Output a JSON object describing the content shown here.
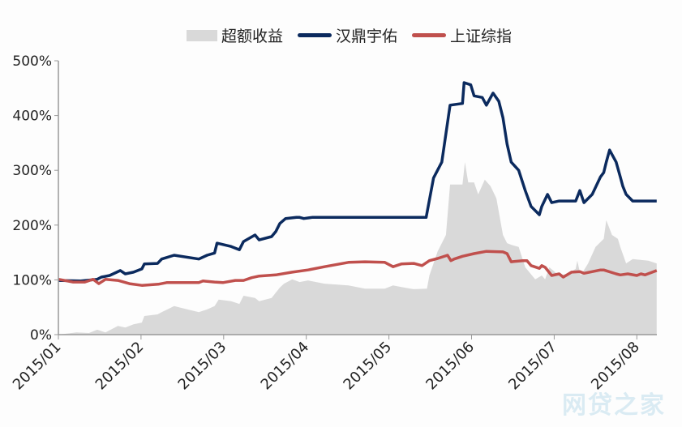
{
  "chart_data": {
    "type": "line",
    "title": "",
    "xlabel": "",
    "ylabel": "",
    "x_unit": "months since 2015/01",
    "x_tick_labels": [
      "2015/01",
      "2015/02",
      "2015/03",
      "2015/04",
      "2015/05",
      "2015/06",
      "2015/07",
      "2015/08"
    ],
    "xlim": [
      0,
      7.24
    ],
    "y_tick_labels": [
      "0%",
      "100%",
      "200%",
      "300%",
      "400%",
      "500%"
    ],
    "ylim": [
      0,
      500
    ],
    "grid": false,
    "legend_position": "top-center",
    "legend": [
      "超额收益",
      "汉鼎宇佑",
      "上证综指"
    ],
    "series": [
      {
        "name": "超额收益",
        "kind": "area",
        "color": "#d9d9d9",
        "x": [
          0,
          0.22,
          0.37,
          0.47,
          0.57,
          0.72,
          0.81,
          0.91,
          1.01,
          1.04,
          1.2,
          1.25,
          1.4,
          1.7,
          1.8,
          1.89,
          1.94,
          2.09,
          2.19,
          2.24,
          2.38,
          2.43,
          2.58,
          2.68,
          2.73,
          2.83,
          2.92,
          3.02,
          3.22,
          3.51,
          3.71,
          3.95,
          4.05,
          4.15,
          4.3,
          4.46,
          4.49,
          4.59,
          4.69,
          4.74,
          4.89,
          4.92,
          4.96,
          5.03,
          5.08,
          5.16,
          5.23,
          5.3,
          5.38,
          5.43,
          5.48,
          5.57,
          5.65,
          5.77,
          5.85,
          5.89,
          5.94,
          6.06,
          6.16,
          6.26,
          6.28,
          6.32,
          6.41,
          6.5,
          6.6,
          6.63,
          6.7,
          6.77,
          6.8,
          6.87,
          6.95,
          7.14,
          7.24
        ],
        "values": [
          0,
          4,
          3,
          9,
          4,
          16,
          13,
          19,
          22,
          34,
          37,
          41,
          52,
          41,
          46,
          52,
          64,
          61,
          56,
          71,
          67,
          61,
          67,
          86,
          93,
          101,
          96,
          99,
          93,
          90,
          84,
          84,
          90,
          87,
          83,
          84,
          108,
          152,
          182,
          274,
          274,
          315,
          278,
          278,
          256,
          283,
          271,
          249,
          182,
          167,
          164,
          160,
          123,
          101,
          108,
          101,
          123,
          108,
          111,
          120,
          135,
          108,
          130,
          160,
          175,
          209,
          182,
          175,
          160,
          130,
          138,
          135,
          130
        ]
      },
      {
        "name": "汉鼎宇佑",
        "kind": "line",
        "color": "#0b2a5e",
        "x": [
          0,
          0.27,
          0.47,
          0.52,
          0.62,
          0.75,
          0.81,
          0.91,
          1.01,
          1.04,
          1.2,
          1.25,
          1.4,
          1.7,
          1.8,
          1.89,
          1.92,
          2.09,
          2.19,
          2.24,
          2.38,
          2.43,
          2.58,
          2.63,
          2.68,
          2.75,
          2.88,
          2.92,
          2.97,
          3.07,
          4.45,
          4.54,
          4.64,
          4.74,
          4.89,
          4.91,
          4.99,
          5.03,
          5.13,
          5.18,
          5.26,
          5.33,
          5.38,
          5.43,
          5.48,
          5.57,
          5.65,
          5.72,
          5.82,
          5.85,
          5.92,
          5.97,
          6.06,
          6.26,
          6.31,
          6.36,
          6.46,
          6.56,
          6.6,
          6.63,
          6.67,
          6.75,
          6.8,
          6.83,
          6.87,
          6.95,
          7.24
        ],
        "values": [
          99,
          98,
          101,
          105,
          108,
          117,
          111,
          114,
          120,
          129,
          130,
          138,
          145,
          138,
          145,
          149,
          167,
          161,
          155,
          170,
          182,
          173,
          179,
          188,
          203,
          212,
          214,
          214,
          212,
          214,
          214,
          286,
          315,
          419,
          422,
          460,
          456,
          436,
          433,
          419,
          441,
          426,
          396,
          348,
          315,
          300,
          263,
          234,
          219,
          234,
          256,
          241,
          244,
          244,
          263,
          241,
          256,
          288,
          296,
          315,
          337,
          315,
          288,
          271,
          256,
          244,
          244
        ]
      },
      {
        "name": "上证综指",
        "kind": "line",
        "color": "#c0504d",
        "x": [
          0,
          0.18,
          0.32,
          0.42,
          0.49,
          0.57,
          0.72,
          0.86,
          1.01,
          1.21,
          1.31,
          1.7,
          1.75,
          1.89,
          1.99,
          2.14,
          2.24,
          2.34,
          2.43,
          2.63,
          2.83,
          3.02,
          3.22,
          3.51,
          3.71,
          3.95,
          4.05,
          4.15,
          4.3,
          4.4,
          4.49,
          4.59,
          4.71,
          4.75,
          4.79,
          4.89,
          5.03,
          5.18,
          5.38,
          5.43,
          5.48,
          5.62,
          5.67,
          5.72,
          5.82,
          5.85,
          5.89,
          5.97,
          6.06,
          6.11,
          6.21,
          6.31,
          6.36,
          6.56,
          6.6,
          6.75,
          6.8,
          6.89,
          7.0,
          7.05,
          7.1,
          7.24
        ],
        "values": [
          101,
          96,
          96,
          101,
          93,
          101,
          99,
          93,
          90,
          92,
          95,
          95,
          98,
          96,
          95,
          99,
          99,
          104,
          107,
          109,
          114,
          118,
          124,
          132,
          133,
          132,
          124,
          129,
          130,
          126,
          135,
          139,
          145,
          135,
          138,
          143,
          148,
          152,
          151,
          148,
          133,
          135,
          135,
          126,
          121,
          126,
          123,
          108,
          111,
          105,
          114,
          115,
          112,
          118,
          118,
          111,
          109,
          111,
          108,
          111,
          109,
          117
        ]
      }
    ]
  },
  "watermark": "网贷之家"
}
